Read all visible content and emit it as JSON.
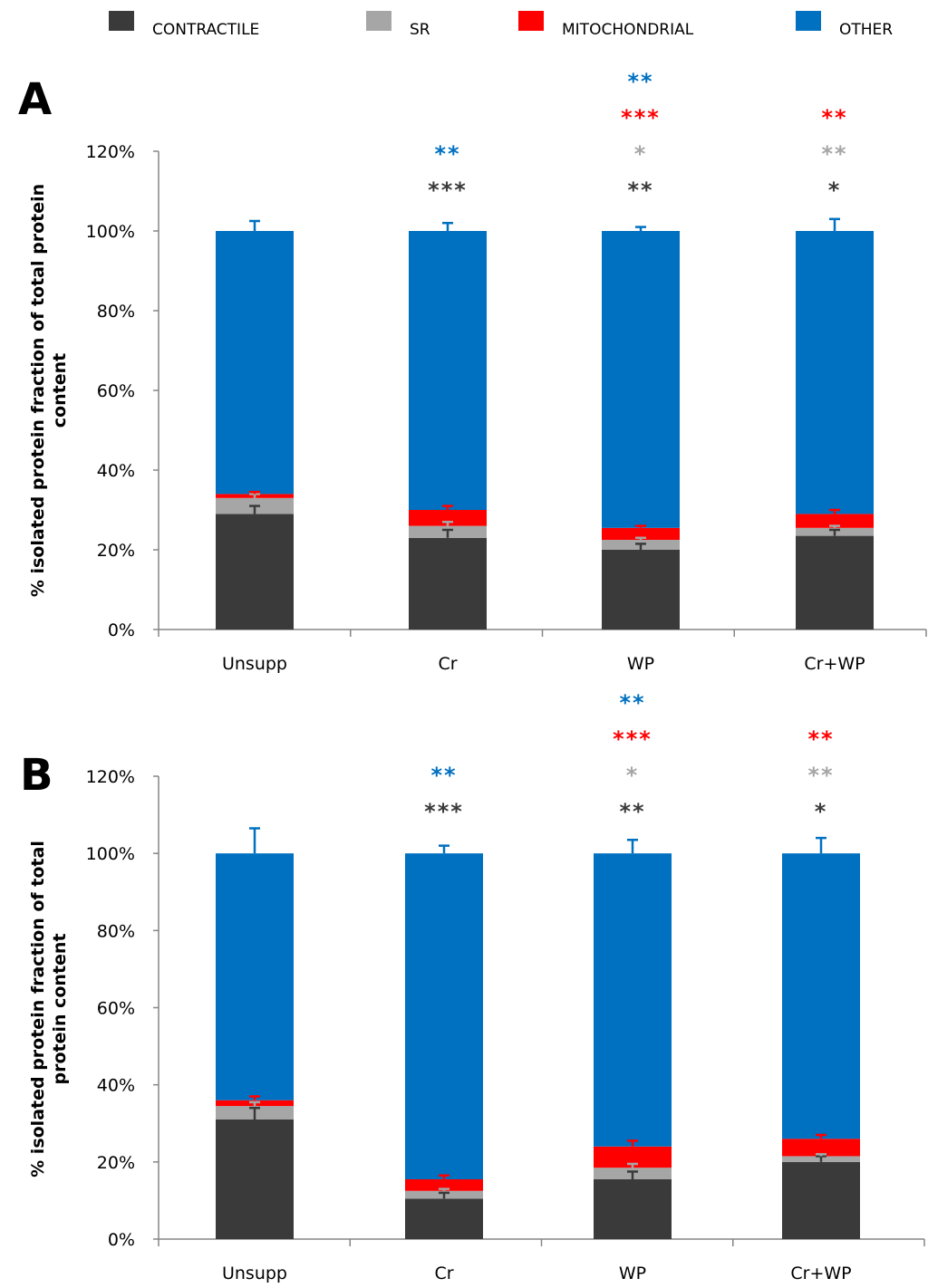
{
  "legend": [
    {
      "name": "CONTRACTILE",
      "color": "#3a3a3a"
    },
    {
      "name": "SR",
      "color": "#a6a6a6"
    },
    {
      "name": "MITOCHONDRIAL",
      "color": "#ff0000"
    },
    {
      "name": "OTHER",
      "color": "#0070c0"
    }
  ],
  "chart_data": [
    {
      "type": "bar",
      "stacked": true,
      "panel": "A",
      "ylabel": [
        "% isolated protein fraction of total protein",
        "content"
      ],
      "categories": [
        "Unsupp",
        "Cr",
        "WP",
        "Cr+WP"
      ],
      "ylim": [
        0,
        120
      ],
      "yticks": [
        0,
        20,
        40,
        60,
        80,
        100,
        120
      ],
      "ytick_labels": [
        "0%",
        "20%",
        "40%",
        "60%",
        "80%",
        "100%",
        "120%"
      ],
      "series": [
        {
          "name": "CONTRACTILE",
          "values": [
            29,
            23,
            20,
            23.5
          ],
          "errors": [
            2,
            2,
            1.5,
            1.5
          ]
        },
        {
          "name": "SR",
          "values": [
            4,
            3,
            2.5,
            2
          ],
          "errors": [
            1,
            1,
            0.5,
            0.5
          ]
        },
        {
          "name": "MITOCHONDRIAL",
          "values": [
            1,
            4,
            3,
            3.5
          ],
          "errors": [
            0.5,
            1,
            0.5,
            1
          ]
        },
        {
          "name": "OTHER",
          "values": [
            66,
            70,
            74.5,
            71
          ],
          "errors": [
            2.5,
            2,
            1,
            3
          ]
        }
      ],
      "significance": [
        {
          "category": "Cr",
          "marks": [
            {
              "text": "**",
              "color": "#0070c0"
            },
            {
              "text": "***",
              "color": "#3a3a3a"
            }
          ]
        },
        {
          "category": "WP",
          "marks": [
            {
              "text": "**",
              "color": "#0070c0"
            },
            {
              "text": "***",
              "color": "#ff0000"
            },
            {
              "text": "*",
              "color": "#a6a6a6"
            },
            {
              "text": "**",
              "color": "#3a3a3a"
            }
          ]
        },
        {
          "category": "Cr+WP",
          "marks": [
            {
              "text": "**",
              "color": "#ff0000"
            },
            {
              "text": "**",
              "color": "#a6a6a6"
            },
            {
              "text": "*",
              "color": "#3a3a3a"
            }
          ]
        }
      ]
    },
    {
      "type": "bar",
      "stacked": true,
      "panel": "B",
      "ylabel": [
        "% isolated protein fraction of total",
        "protein content"
      ],
      "categories": [
        "Unsupp",
        "Cr",
        "WP",
        "Cr+WP"
      ],
      "ylim": [
        0,
        120
      ],
      "yticks": [
        0,
        20,
        40,
        60,
        80,
        100,
        120
      ],
      "ytick_labels": [
        "0%",
        "20%",
        "40%",
        "60%",
        "80%",
        "100%",
        "120%"
      ],
      "series": [
        {
          "name": "CONTRACTILE",
          "values": [
            31,
            10.5,
            15.5,
            20
          ],
          "errors": [
            3,
            1.5,
            2,
            1.5
          ]
        },
        {
          "name": "SR",
          "values": [
            3.5,
            2,
            3,
            1.5
          ],
          "errors": [
            1,
            0.5,
            1,
            0.5
          ]
        },
        {
          "name": "MITOCHONDRIAL",
          "values": [
            1.5,
            3,
            5.5,
            4.5
          ],
          "errors": [
            1,
            1,
            1.5,
            1
          ]
        },
        {
          "name": "OTHER",
          "values": [
            64,
            84.5,
            76,
            74
          ],
          "errors": [
            6.5,
            2,
            3.5,
            4
          ]
        }
      ],
      "significance": [
        {
          "category": "Cr",
          "marks": [
            {
              "text": "**",
              "color": "#0070c0"
            },
            {
              "text": "***",
              "color": "#3a3a3a"
            }
          ]
        },
        {
          "category": "WP",
          "marks": [
            {
              "text": "**",
              "color": "#0070c0"
            },
            {
              "text": "***",
              "color": "#ff0000"
            },
            {
              "text": "*",
              "color": "#a6a6a6"
            },
            {
              "text": "**",
              "color": "#3a3a3a"
            }
          ]
        },
        {
          "category": "Cr+WP",
          "marks": [
            {
              "text": "**",
              "color": "#ff0000"
            },
            {
              "text": "**",
              "color": "#a6a6a6"
            },
            {
              "text": "*",
              "color": "#3a3a3a"
            }
          ]
        }
      ]
    }
  ]
}
